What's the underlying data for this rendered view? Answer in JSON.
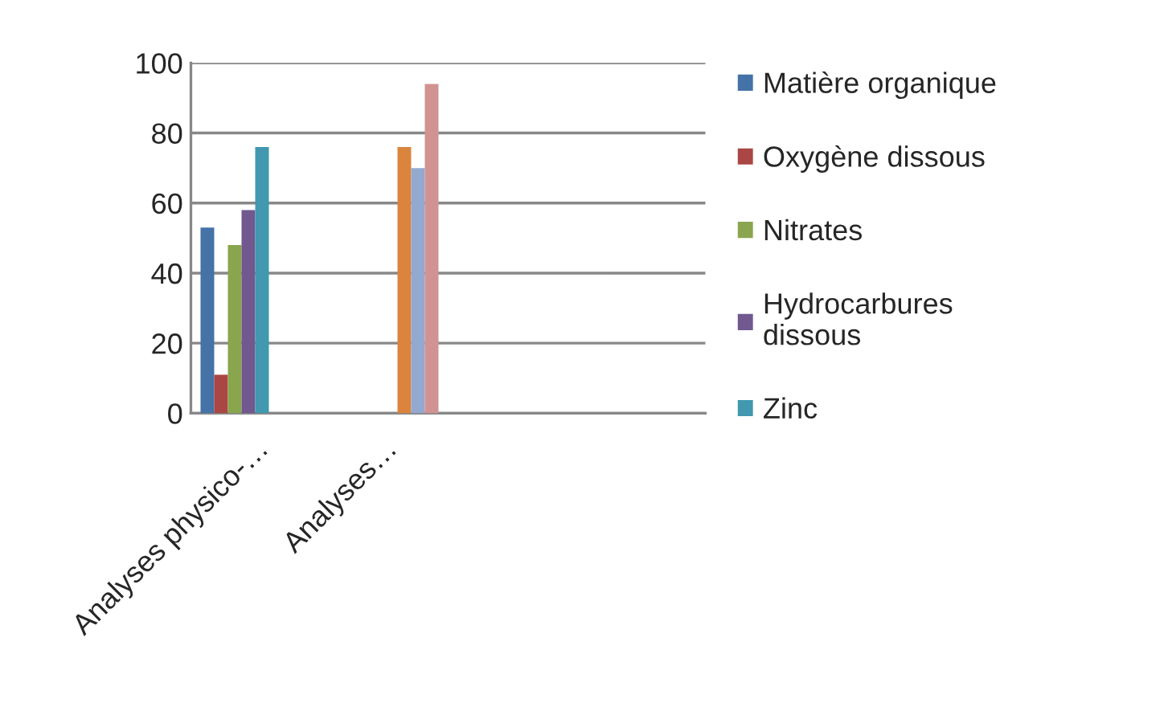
{
  "chart_data": {
    "type": "bar",
    "categories": [
      "Analyses physico-…",
      "Analyses…",
      null,
      null
    ],
    "series": [
      {
        "name": "Matière organique",
        "color": "#4572a7",
        "values": [
          53,
          null,
          null,
          null
        ]
      },
      {
        "name": "Oxygène dissous",
        "color": "#aa4643",
        "values": [
          11,
          null,
          null,
          null
        ]
      },
      {
        "name": "Nitrates",
        "color": "#89a54e",
        "values": [
          48,
          null,
          null,
          null
        ]
      },
      {
        "name": "Hydrocarbures\ndissous",
        "color": "#71588f",
        "values": [
          58,
          null,
          null,
          null
        ]
      },
      {
        "name": "Zinc",
        "color": "#4198af",
        "values": [
          76,
          null,
          null,
          null
        ]
      },
      {
        "color": "#db843d",
        "values": [
          null,
          76,
          null,
          null
        ]
      },
      {
        "color": "#93a9cf",
        "values": [
          null,
          70,
          null,
          null
        ]
      },
      {
        "color": "#d19392",
        "values": [
          null,
          94,
          null,
          null
        ]
      }
    ],
    "ylim": [
      0,
      100
    ],
    "yticks": [
      0,
      20,
      40,
      60,
      80,
      100
    ],
    "grid": "y",
    "legend": "right"
  }
}
